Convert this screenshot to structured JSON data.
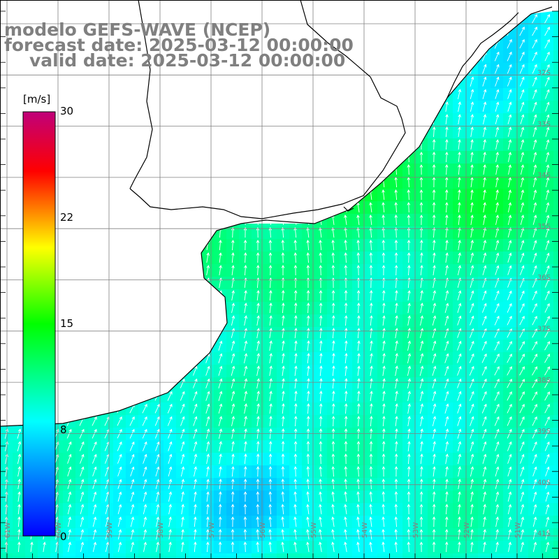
{
  "title": {
    "line1": "modelo GEFS-WAVE (NCEP)",
    "line2": "forecast date: 2025-03-12 00:00:00",
    "line3": "valid date: 2025-03-12 00:00:00"
  },
  "colorbar": {
    "unit": "[m/s]",
    "ticks": [
      "30",
      "22",
      "15",
      "8",
      "0"
    ],
    "tick_values": [
      30,
      22,
      15,
      8,
      0
    ],
    "min": 0,
    "max": 30,
    "stops": [
      "#0000ff",
      "#00ffff",
      "#00ff00",
      "#ffff00",
      "#ff0000",
      "#c0007a"
    ]
  },
  "map": {
    "variable": "wind speed and direction",
    "land_color": "#ffffff",
    "grid_color": "#808080",
    "lat_labels": [
      "32S",
      "33S",
      "34S",
      "35S",
      "36S",
      "37S",
      "38S",
      "39S",
      "40S",
      "41S"
    ],
    "lon_labels": [
      "61W",
      "60W",
      "59W",
      "58W",
      "57W",
      "56W",
      "55W",
      "54W",
      "53W",
      "52W",
      "51W"
    ]
  }
}
